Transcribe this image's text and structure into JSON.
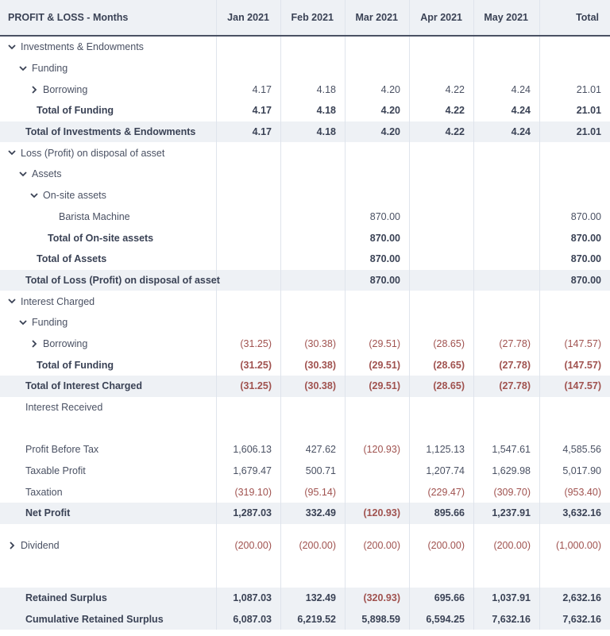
{
  "header": {
    "title": "PROFIT & LOSS - Months",
    "columns": [
      "Jan 2021",
      "Feb 2021",
      "Mar 2021",
      "Apr 2021",
      "May 2021",
      "Total"
    ]
  },
  "rows": [
    {
      "label": "Investments & Endowments",
      "indent": 0,
      "toggle": "expanded",
      "bold": false,
      "shade": false,
      "values": [
        "",
        "",
        "",
        "",
        "",
        ""
      ]
    },
    {
      "label": "Funding",
      "indent": 1,
      "toggle": "expanded",
      "bold": false,
      "shade": false,
      "values": [
        "",
        "",
        "",
        "",
        "",
        ""
      ]
    },
    {
      "label": "Borrowing",
      "indent": 2,
      "toggle": "collapsed",
      "bold": false,
      "shade": false,
      "values": [
        "4.17",
        "4.18",
        "4.20",
        "4.22",
        "4.24",
        "21.01"
      ]
    },
    {
      "label": "Total of Funding",
      "indent": 2,
      "toggle": "none",
      "bold": true,
      "shade": false,
      "values": [
        "4.17",
        "4.18",
        "4.20",
        "4.22",
        "4.24",
        "21.01"
      ]
    },
    {
      "label": "Total of Investments & Endowments",
      "indent": 1,
      "toggle": "none",
      "bold": true,
      "shade": true,
      "values": [
        "4.17",
        "4.18",
        "4.20",
        "4.22",
        "4.24",
        "21.01"
      ]
    },
    {
      "label": "Loss (Profit) on disposal of asset",
      "indent": 0,
      "toggle": "expanded",
      "bold": false,
      "shade": false,
      "values": [
        "",
        "",
        "",
        "",
        "",
        ""
      ]
    },
    {
      "label": "Assets",
      "indent": 1,
      "toggle": "expanded",
      "bold": false,
      "shade": false,
      "values": [
        "",
        "",
        "",
        "",
        "",
        ""
      ]
    },
    {
      "label": "On-site assets",
      "indent": 2,
      "toggle": "expanded",
      "bold": false,
      "shade": false,
      "values": [
        "",
        "",
        "",
        "",
        "",
        ""
      ]
    },
    {
      "label": "Barista Machine",
      "indent": 4,
      "toggle": "none",
      "bold": false,
      "shade": false,
      "values": [
        "",
        "",
        "870.00",
        "",
        "",
        "870.00"
      ]
    },
    {
      "label": "Total of On-site assets",
      "indent": 3,
      "toggle": "none",
      "bold": true,
      "shade": false,
      "values": [
        "",
        "",
        "870.00",
        "",
        "",
        "870.00"
      ]
    },
    {
      "label": "Total of Assets",
      "indent": 2,
      "toggle": "none",
      "bold": true,
      "shade": false,
      "values": [
        "",
        "",
        "870.00",
        "",
        "",
        "870.00"
      ]
    },
    {
      "label": "Total of Loss (Profit) on disposal of asset",
      "indent": 1,
      "toggle": "none",
      "bold": true,
      "shade": true,
      "values": [
        "",
        "",
        "870.00",
        "",
        "",
        "870.00"
      ]
    },
    {
      "label": "Interest Charged",
      "indent": 0,
      "toggle": "expanded",
      "bold": false,
      "shade": false,
      "values": [
        "",
        "",
        "",
        "",
        "",
        ""
      ]
    },
    {
      "label": "Funding",
      "indent": 1,
      "toggle": "expanded",
      "bold": false,
      "shade": false,
      "values": [
        "",
        "",
        "",
        "",
        "",
        ""
      ]
    },
    {
      "label": "Borrowing",
      "indent": 2,
      "toggle": "collapsed",
      "bold": false,
      "shade": false,
      "values": [
        "(31.25)",
        "(30.38)",
        "(29.51)",
        "(28.65)",
        "(27.78)",
        "(147.57)"
      ]
    },
    {
      "label": "Total of Funding",
      "indent": 2,
      "toggle": "none",
      "bold": true,
      "shade": false,
      "values": [
        "(31.25)",
        "(30.38)",
        "(29.51)",
        "(28.65)",
        "(27.78)",
        "(147.57)"
      ]
    },
    {
      "label": "Total of Interest Charged",
      "indent": 1,
      "toggle": "none",
      "bold": true,
      "shade": true,
      "values": [
        "(31.25)",
        "(30.38)",
        "(29.51)",
        "(28.65)",
        "(27.78)",
        "(147.57)"
      ]
    },
    {
      "label": "Interest Received",
      "indent": 1,
      "toggle": "none",
      "bold": false,
      "shade": false,
      "values": [
        "",
        "",
        "",
        "",
        "",
        ""
      ]
    },
    {
      "label": "",
      "indent": 0,
      "toggle": "none",
      "bold": false,
      "shade": false,
      "values": [
        "",
        "",
        "",
        "",
        "",
        ""
      ]
    },
    {
      "label": "Profit Before Tax",
      "indent": 1,
      "toggle": "none",
      "bold": false,
      "shade": false,
      "values": [
        "1,606.13",
        "427.62",
        "(120.93)",
        "1,125.13",
        "1,547.61",
        "4,585.56"
      ]
    },
    {
      "label": "Taxable Profit",
      "indent": 1,
      "toggle": "none",
      "bold": false,
      "shade": false,
      "values": [
        "1,679.47",
        "500.71",
        "",
        "1,207.74",
        "1,629.98",
        "5,017.90"
      ]
    },
    {
      "label": "Taxation",
      "indent": 1,
      "toggle": "none",
      "bold": false,
      "shade": false,
      "values": [
        "(319.10)",
        "(95.14)",
        "",
        "(229.47)",
        "(309.70)",
        "(953.40)"
      ]
    },
    {
      "label": "Net Profit",
      "indent": 1,
      "toggle": "none",
      "bold": true,
      "shade": true,
      "values": [
        "1,287.03",
        "332.49",
        "(120.93)",
        "895.66",
        "1,237.91",
        "3,632.16"
      ]
    },
    {
      "label": "Dividend",
      "indent": 0,
      "toggle": "collapsed",
      "bold": false,
      "shade": false,
      "tall": true,
      "values": [
        "(200.00)",
        "(200.00)",
        "(200.00)",
        "(200.00)",
        "(200.00)",
        "(1,000.00)"
      ]
    },
    {
      "label": "",
      "indent": 0,
      "toggle": "none",
      "bold": false,
      "shade": false,
      "values": [
        "",
        "",
        "",
        "",
        "",
        ""
      ]
    },
    {
      "label": "Retained Surplus",
      "indent": 1,
      "toggle": "none",
      "bold": true,
      "shade": true,
      "values": [
        "1,087.03",
        "132.49",
        "(320.93)",
        "695.66",
        "1,037.91",
        "2,632.16"
      ]
    },
    {
      "label": "Cumulative Retained Surplus",
      "indent": 1,
      "toggle": "none",
      "bold": true,
      "shade": true,
      "values": [
        "6,087.03",
        "6,219.52",
        "5,898.59",
        "6,594.25",
        "7,632.16",
        "7,632.16"
      ]
    }
  ],
  "colors": {
    "header_bg": "#eef1f5",
    "shade_bg": "#eef1f5",
    "text": "#4a5163",
    "negative": "#a0524f",
    "header_border": "#4a5163"
  }
}
